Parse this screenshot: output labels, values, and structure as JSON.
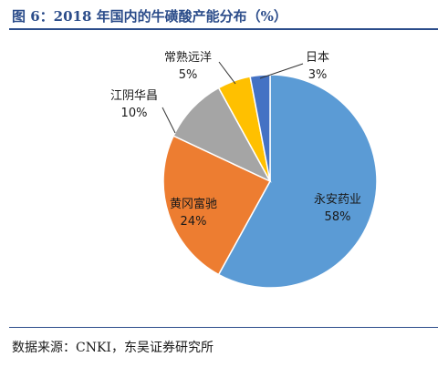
{
  "title": "图 6：2018 年国内的牛磺酸产能分布（%）",
  "source": "数据来源：CNKI，东吴证券研究所",
  "chart_data": {
    "type": "pie",
    "title": "图 6：2018 年国内的牛磺酸产能分布（%）",
    "slices": [
      {
        "name": "永安药业",
        "value": 58,
        "label": "58%",
        "color": "#5b9bd5"
      },
      {
        "name": "黄冈富驰",
        "value": 24,
        "label": "24%",
        "color": "#ed7d31"
      },
      {
        "name": "江阴华昌",
        "value": 10,
        "label": "10%",
        "color": "#a5a5a5"
      },
      {
        "name": "常熟远洋",
        "value": 5,
        "label": "5%",
        "color": "#ffc000"
      },
      {
        "name": "日本",
        "value": 3,
        "label": "3%",
        "color": "#4472c4"
      }
    ]
  }
}
